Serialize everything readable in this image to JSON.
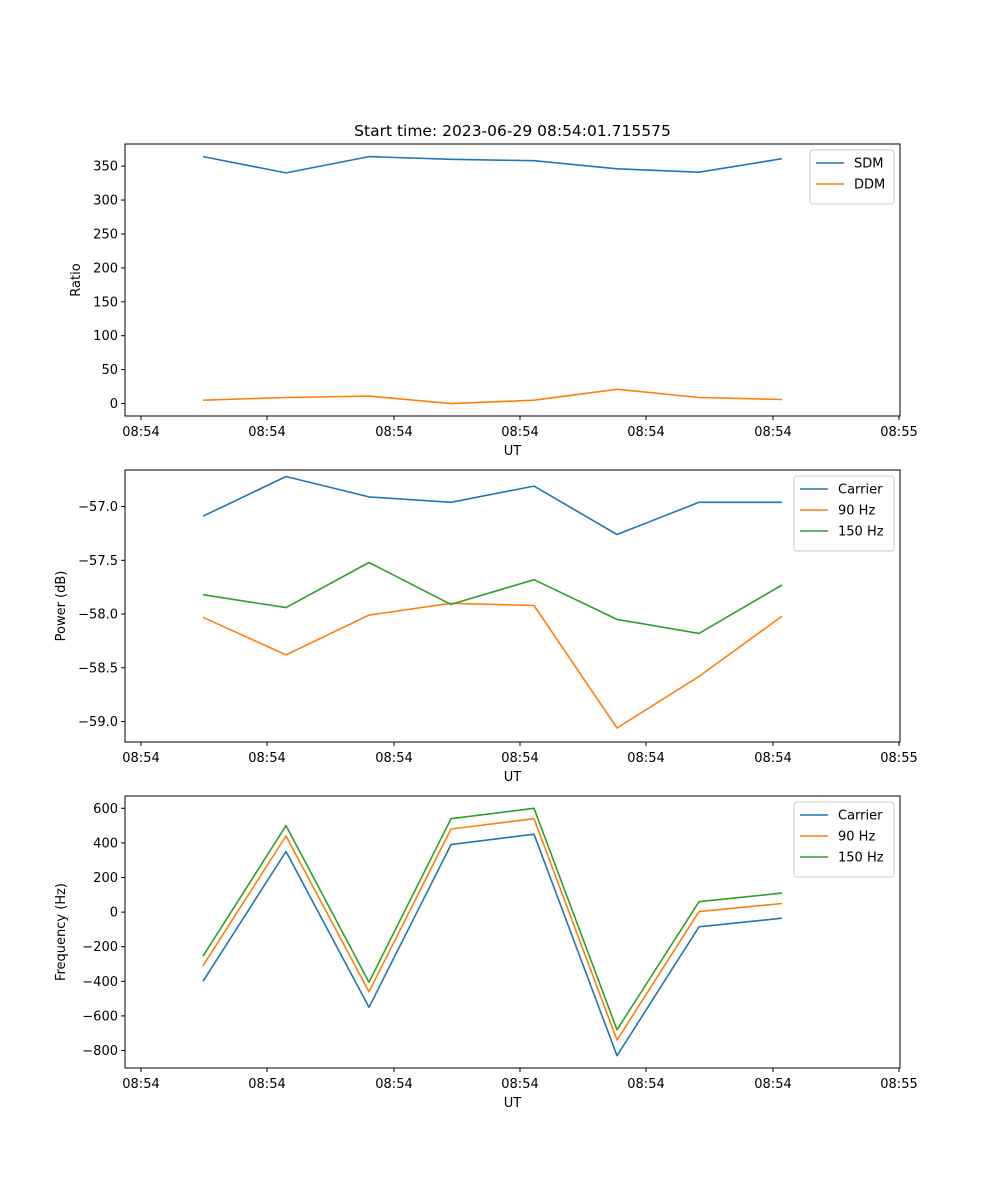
{
  "figure": {
    "title": "Start time: 2023-06-29 08:54:01.715575"
  },
  "colors": {
    "blue": "#1f77b4",
    "orange": "#ff7f0e",
    "green": "#2ca02c",
    "axis": "#000000",
    "legend_border": "#cccccc"
  },
  "chart_data": [
    {
      "type": "line",
      "title": "Start time: 2023-06-29 08:54:01.715575",
      "xlabel": "UT",
      "ylabel": "Ratio",
      "x_tick_labels": [
        "08:54",
        "08:54",
        "08:54",
        "08:54",
        "08:54",
        "08:54",
        "08:54",
        "08:55"
      ],
      "y_ticks": [
        0,
        50,
        100,
        150,
        200,
        250,
        300,
        350
      ],
      "y_tick_labels": [
        "0",
        "50",
        "100",
        "150",
        "200",
        "250",
        "300",
        "350"
      ],
      "ylim": [
        -18.3,
        382.6
      ],
      "grid": false,
      "legend_position": "upper right",
      "series": [
        {
          "name": "SDM",
          "color": "#1f77b4",
          "values": [
            364,
            340,
            364,
            360,
            358,
            346,
            341,
            361
          ]
        },
        {
          "name": "DDM",
          "color": "#ff7f0e",
          "values": [
            5,
            9,
            11,
            0,
            5,
            21,
            9,
            6
          ]
        }
      ]
    },
    {
      "type": "line",
      "title": "",
      "xlabel": "UT",
      "ylabel": "Power (dB)",
      "x_tick_labels": [
        "08:54",
        "08:54",
        "08:54",
        "08:54",
        "08:54",
        "08:54",
        "08:54",
        "08:55"
      ],
      "y_ticks": [
        -57.0,
        -57.5,
        -58.0,
        -58.5,
        -59.0
      ],
      "y_tick_labels": [
        "−57.0",
        "−57.5",
        "−58.0",
        "−58.5",
        "−59.0"
      ],
      "ylim": [
        -59.19,
        -56.66
      ],
      "grid": false,
      "legend_position": "upper right",
      "series": [
        {
          "name": "Carrier",
          "color": "#1f77b4",
          "values": [
            -57.09,
            -56.72,
            -56.91,
            -56.96,
            -56.81,
            -57.26,
            -56.96,
            -56.96
          ]
        },
        {
          "name": "90 Hz",
          "color": "#ff7f0e",
          "values": [
            -58.03,
            -58.38,
            -58.01,
            -57.9,
            -57.92,
            -59.06,
            -58.58,
            -58.02
          ]
        },
        {
          "name": "150 Hz",
          "color": "#2ca02c",
          "values": [
            -57.82,
            -57.94,
            -57.52,
            -57.91,
            -57.68,
            -58.05,
            -58.18,
            -57.73
          ]
        }
      ]
    },
    {
      "type": "line",
      "title": "",
      "xlabel": "UT",
      "ylabel": "Frequency (Hz)",
      "x_tick_labels": [
        "08:54",
        "08:54",
        "08:54",
        "08:54",
        "08:54",
        "08:54",
        "08:54",
        "08:55"
      ],
      "y_ticks": [
        -800,
        -600,
        -400,
        -200,
        0,
        200,
        400,
        600
      ],
      "y_tick_labels": [
        "−800",
        "−600",
        "−400",
        "−200",
        "0",
        "200",
        "400",
        "600"
      ],
      "ylim": [
        -901,
        671
      ],
      "grid": false,
      "legend_position": "upper right",
      "series": [
        {
          "name": "Carrier",
          "color": "#1f77b4",
          "values": [
            -400,
            350,
            -550,
            390,
            450,
            -830,
            -85,
            -35
          ]
        },
        {
          "name": "90 Hz",
          "color": "#ff7f0e",
          "values": [
            -310,
            440,
            -460,
            480,
            540,
            -740,
            3,
            50
          ]
        },
        {
          "name": "150 Hz",
          "color": "#2ca02c",
          "values": [
            -255,
            500,
            -405,
            540,
            600,
            -680,
            60,
            110
          ]
        }
      ]
    }
  ]
}
